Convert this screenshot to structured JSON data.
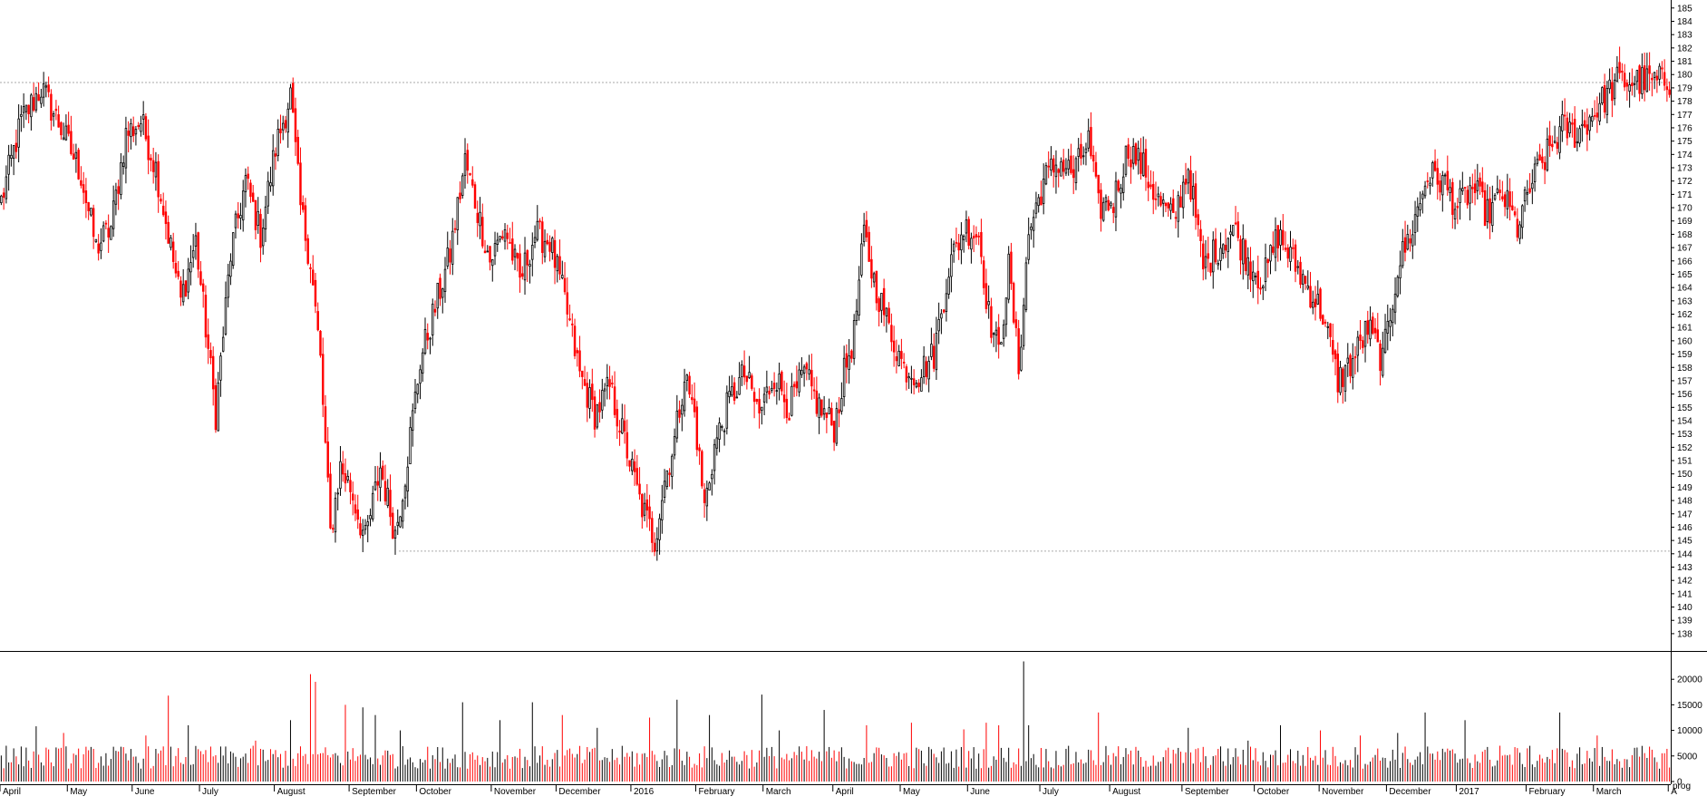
{
  "chart_data": [
    {
      "type": "candlestick",
      "title": "",
      "ylim": [
        136.7,
        185.6
      ],
      "y_ticks": [
        138,
        139,
        140,
        141,
        142,
        143,
        144,
        145,
        146,
        147,
        148,
        149,
        150,
        151,
        152,
        153,
        154,
        155,
        156,
        157,
        158,
        159,
        160,
        161,
        162,
        163,
        164,
        165,
        166,
        167,
        168,
        169,
        170,
        171,
        172,
        173,
        174,
        175,
        176,
        177,
        178,
        179,
        180,
        181,
        182,
        183,
        184,
        185
      ],
      "reference_lines": [
        179.4,
        144.2
      ],
      "up_color": "#000000",
      "down_color": "#ff0000",
      "anchors": [
        {
          "i": 0,
          "close": 170.5
        },
        {
          "i": 8,
          "close": 176.5
        },
        {
          "i": 16,
          "close": 179.0
        },
        {
          "i": 24,
          "close": 176.0
        },
        {
          "i": 32,
          "close": 172.5
        },
        {
          "i": 38,
          "close": 167.0
        },
        {
          "i": 44,
          "close": 168.5
        },
        {
          "i": 50,
          "close": 175.5
        },
        {
          "i": 56,
          "close": 176.5
        },
        {
          "i": 62,
          "close": 173.0
        },
        {
          "i": 68,
          "close": 167.0
        },
        {
          "i": 72,
          "close": 163.0
        },
        {
          "i": 78,
          "close": 167.5
        },
        {
          "i": 86,
          "close": 154.5
        },
        {
          "i": 92,
          "close": 166.5
        },
        {
          "i": 98,
          "close": 172.0
        },
        {
          "i": 104,
          "close": 168.0
        },
        {
          "i": 110,
          "close": 174.5
        },
        {
          "i": 116,
          "close": 178.5
        },
        {
          "i": 120,
          "close": 170.0
        },
        {
          "i": 124,
          "close": 166.0
        },
        {
          "i": 128,
          "close": 158.5
        },
        {
          "i": 132,
          "close": 145.5
        },
        {
          "i": 136,
          "close": 150.5
        },
        {
          "i": 140,
          "close": 149.0
        },
        {
          "i": 146,
          "close": 145.0
        },
        {
          "i": 152,
          "close": 150.5
        },
        {
          "i": 158,
          "close": 145.5
        },
        {
          "i": 162,
          "close": 150.0
        },
        {
          "i": 168,
          "close": 158.5
        },
        {
          "i": 174,
          "close": 162.5
        },
        {
          "i": 180,
          "close": 166.5
        },
        {
          "i": 186,
          "close": 173.5
        },
        {
          "i": 190,
          "close": 170.5
        },
        {
          "i": 196,
          "close": 166.0
        },
        {
          "i": 202,
          "close": 168.5
        },
        {
          "i": 208,
          "close": 164.5
        },
        {
          "i": 214,
          "close": 168.0
        },
        {
          "i": 220,
          "close": 167.5
        },
        {
          "i": 226,
          "close": 163.0
        },
        {
          "i": 232,
          "close": 157.5
        },
        {
          "i": 238,
          "close": 154.5
        },
        {
          "i": 244,
          "close": 156.5
        },
        {
          "i": 250,
          "close": 152.5
        },
        {
          "i": 256,
          "close": 148.0
        },
        {
          "i": 262,
          "close": 145.0
        },
        {
          "i": 266,
          "close": 149.5
        },
        {
          "i": 270,
          "close": 152.5
        },
        {
          "i": 274,
          "close": 157.5
        },
        {
          "i": 278,
          "close": 154.5
        },
        {
          "i": 282,
          "close": 147.5
        },
        {
          "i": 286,
          "close": 152.0
        },
        {
          "i": 292,
          "close": 155.5
        },
        {
          "i": 298,
          "close": 157.5
        },
        {
          "i": 304,
          "close": 154.5
        },
        {
          "i": 310,
          "close": 157.5
        },
        {
          "i": 316,
          "close": 155.0
        },
        {
          "i": 322,
          "close": 157.5
        },
        {
          "i": 328,
          "close": 155.0
        },
        {
          "i": 334,
          "close": 153.5
        },
        {
          "i": 338,
          "close": 157.5
        },
        {
          "i": 342,
          "close": 160.5
        },
        {
          "i": 346,
          "close": 168.0
        },
        {
          "i": 350,
          "close": 164.5
        },
        {
          "i": 356,
          "close": 161.0
        },
        {
          "i": 362,
          "close": 158.0
        },
        {
          "i": 368,
          "close": 157.5
        },
        {
          "i": 374,
          "close": 159.0
        },
        {
          "i": 380,
          "close": 165.5
        },
        {
          "i": 386,
          "close": 168.5
        },
        {
          "i": 392,
          "close": 168.0
        },
        {
          "i": 396,
          "close": 162.0
        },
        {
          "i": 400,
          "close": 159.0
        },
        {
          "i": 404,
          "close": 165.5
        },
        {
          "i": 408,
          "close": 158.0
        },
        {
          "i": 412,
          "close": 168.0
        },
        {
          "i": 418,
          "close": 172.0
        },
        {
          "i": 424,
          "close": 173.5
        },
        {
          "i": 430,
          "close": 172.5
        },
        {
          "i": 436,
          "close": 175.0
        },
        {
          "i": 440,
          "close": 170.0
        },
        {
          "i": 446,
          "close": 170.5
        },
        {
          "i": 452,
          "close": 174.5
        },
        {
          "i": 458,
          "close": 173.0
        },
        {
          "i": 464,
          "close": 170.5
        },
        {
          "i": 470,
          "close": 169.0
        },
        {
          "i": 476,
          "close": 173.0
        },
        {
          "i": 482,
          "close": 165.5
        },
        {
          "i": 488,
          "close": 167.0
        },
        {
          "i": 494,
          "close": 168.5
        },
        {
          "i": 500,
          "close": 166.0
        },
        {
          "i": 506,
          "close": 164.5
        },
        {
          "i": 512,
          "close": 168.0
        },
        {
          "i": 518,
          "close": 166.0
        },
        {
          "i": 524,
          "close": 164.0
        },
        {
          "i": 530,
          "close": 162.0
        },
        {
          "i": 536,
          "close": 157.0
        },
        {
          "i": 542,
          "close": 158.5
        },
        {
          "i": 548,
          "close": 161.0
        },
        {
          "i": 554,
          "close": 158.5
        },
        {
          "i": 560,
          "close": 165.5
        },
        {
          "i": 566,
          "close": 168.5
        },
        {
          "i": 572,
          "close": 172.5
        },
        {
          "i": 578,
          "close": 172.0
        },
        {
          "i": 584,
          "close": 170.0
        },
        {
          "i": 590,
          "close": 171.5
        },
        {
          "i": 596,
          "close": 169.5
        },
        {
          "i": 602,
          "close": 171.0
        },
        {
          "i": 608,
          "close": 168.5
        },
        {
          "i": 614,
          "close": 172.0
        },
        {
          "i": 620,
          "close": 174.0
        },
        {
          "i": 626,
          "close": 176.0
        },
        {
          "i": 632,
          "close": 175.5
        },
        {
          "i": 638,
          "close": 177.0
        },
        {
          "i": 644,
          "close": 178.5
        },
        {
          "i": 648,
          "close": 179.5
        }
      ]
    },
    {
      "type": "bar",
      "title": "",
      "ylim": [
        0,
        25000
      ],
      "y_ticks": [
        0,
        5000,
        10000,
        15000,
        20000
      ],
      "spikes": [
        {
          "i": 2,
          "value": 7000
        },
        {
          "i": 14,
          "value": 10800
        },
        {
          "i": 25,
          "value": 9500
        },
        {
          "i": 58,
          "value": 9000
        },
        {
          "i": 67,
          "value": 16800
        },
        {
          "i": 75,
          "value": 11000
        },
        {
          "i": 102,
          "value": 8000
        },
        {
          "i": 116,
          "value": 12000
        },
        {
          "i": 124,
          "value": 21000
        },
        {
          "i": 126,
          "value": 19500
        },
        {
          "i": 138,
          "value": 15000
        },
        {
          "i": 145,
          "value": 14500
        },
        {
          "i": 150,
          "value": 13000
        },
        {
          "i": 160,
          "value": 10000
        },
        {
          "i": 185,
          "value": 15500
        },
        {
          "i": 200,
          "value": 12000
        },
        {
          "i": 213,
          "value": 15500
        },
        {
          "i": 225,
          "value": 13000
        },
        {
          "i": 239,
          "value": 10500
        },
        {
          "i": 260,
          "value": 12500
        },
        {
          "i": 271,
          "value": 16000
        },
        {
          "i": 284,
          "value": 13000
        },
        {
          "i": 305,
          "value": 17000
        },
        {
          "i": 312,
          "value": 10000
        },
        {
          "i": 330,
          "value": 14000
        },
        {
          "i": 347,
          "value": 11000
        },
        {
          "i": 365,
          "value": 11500
        },
        {
          "i": 386,
          "value": 10200
        },
        {
          "i": 395,
          "value": 11500
        },
        {
          "i": 400,
          "value": 11000
        },
        {
          "i": 410,
          "value": 23500
        },
        {
          "i": 412,
          "value": 11000
        },
        {
          "i": 440,
          "value": 13500
        },
        {
          "i": 476,
          "value": 10500
        },
        {
          "i": 500,
          "value": 8000
        },
        {
          "i": 513,
          "value": 11000
        },
        {
          "i": 529,
          "value": 10000
        },
        {
          "i": 545,
          "value": 9000
        },
        {
          "i": 560,
          "value": 9500
        },
        {
          "i": 571,
          "value": 13500
        },
        {
          "i": 587,
          "value": 12000
        },
        {
          "i": 601,
          "value": 7000
        },
        {
          "i": 625,
          "value": 13500
        },
        {
          "i": 640,
          "value": 9000
        }
      ]
    }
  ],
  "x_axis": {
    "months": [
      {
        "label": "April",
        "i": 0
      },
      {
        "label": "May",
        "i": 27
      },
      {
        "label": "June",
        "i": 53
      },
      {
        "label": "July",
        "i": 80
      },
      {
        "label": "August",
        "i": 110
      },
      {
        "label": "September",
        "i": 140
      },
      {
        "label": "October",
        "i": 167
      },
      {
        "label": "November",
        "i": 197
      },
      {
        "label": "December",
        "i": 223
      },
      {
        "label": "2016",
        "i": 253
      },
      {
        "label": "February",
        "i": 279
      },
      {
        "label": "March",
        "i": 306
      },
      {
        "label": "April",
        "i": 334
      },
      {
        "label": "May",
        "i": 361
      },
      {
        "label": "June",
        "i": 388
      },
      {
        "label": "July",
        "i": 417
      },
      {
        "label": "August",
        "i": 445
      },
      {
        "label": "September",
        "i": 474
      },
      {
        "label": "October",
        "i": 503
      },
      {
        "label": "November",
        "i": 529
      },
      {
        "label": "December",
        "i": 556
      },
      {
        "label": "2017",
        "i": 584
      },
      {
        "label": "February",
        "i": 612
      },
      {
        "label": "March",
        "i": 639
      },
      {
        "label": "A",
        "i": 669
      }
    ]
  },
  "corner_label": "prog"
}
